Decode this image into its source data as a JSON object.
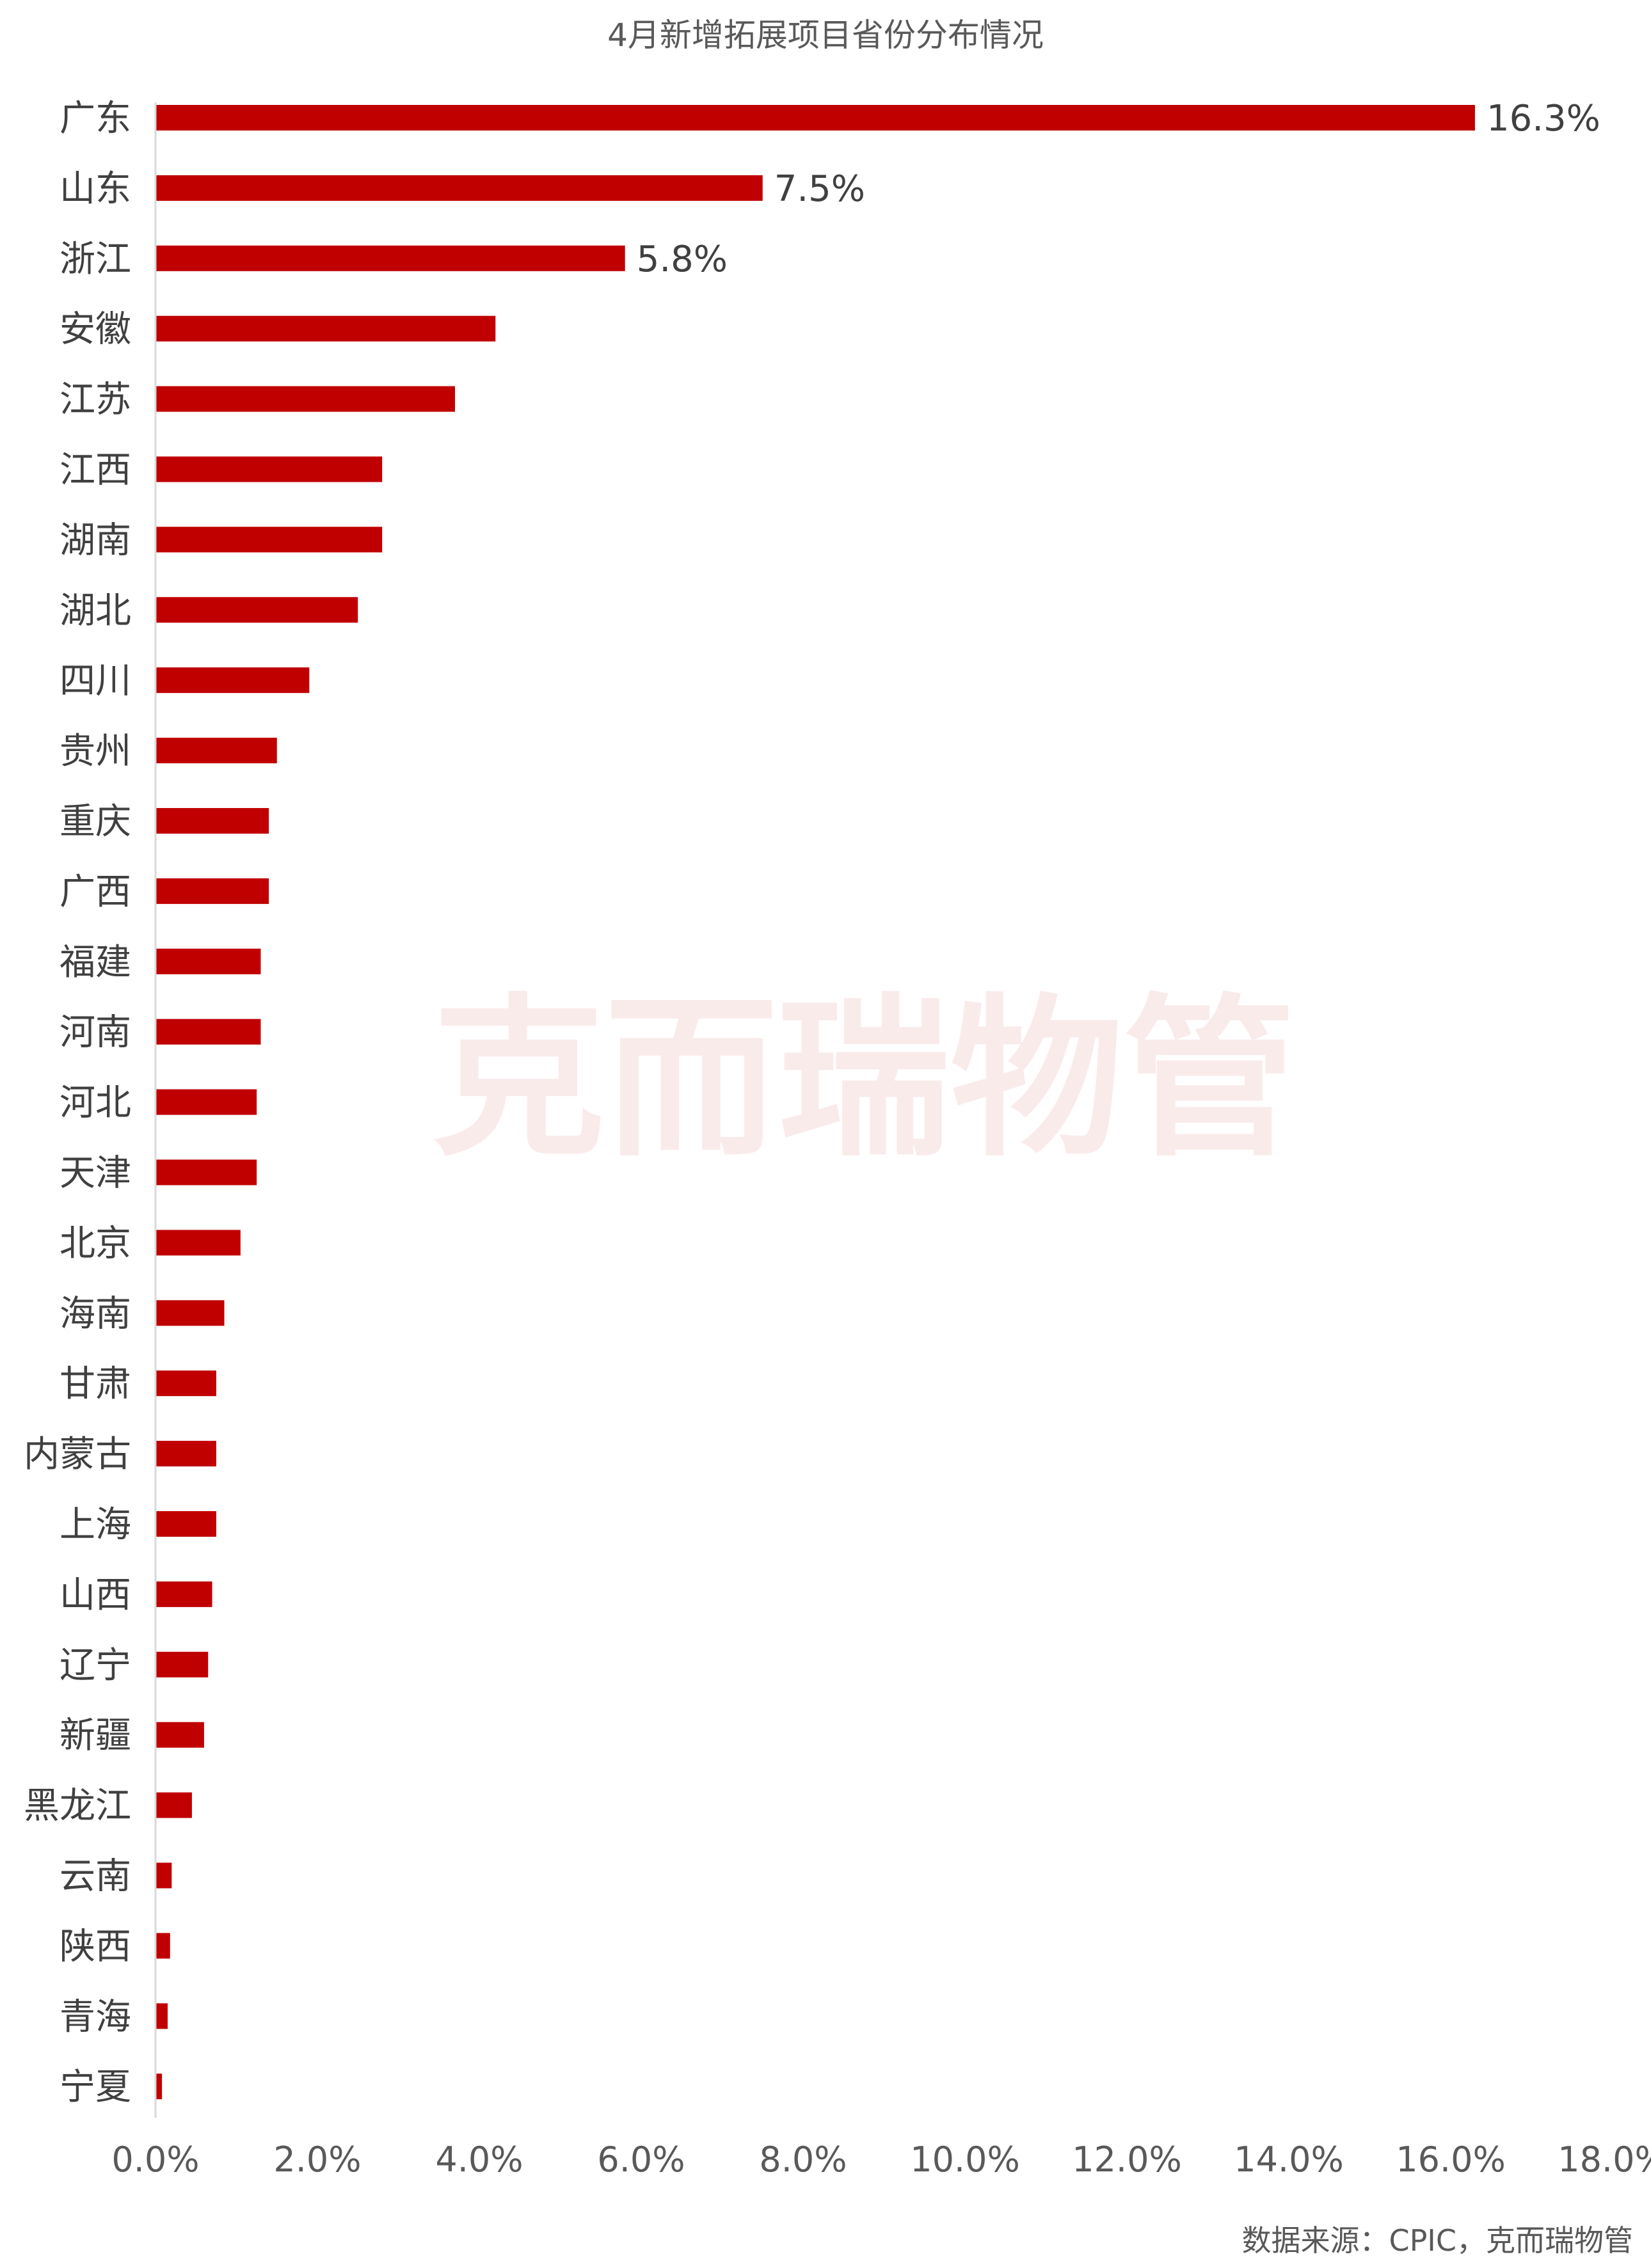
{
  "chart_data": {
    "type": "bar",
    "orientation": "horizontal",
    "title": "4月新增拓展项目省份分布情况",
    "categories": [
      "广东",
      "山东",
      "浙江",
      "安徽",
      "江苏",
      "江西",
      "湖南",
      "湖北",
      "四川",
      "贵州",
      "重庆",
      "广西",
      "福建",
      "河南",
      "河北",
      "天津",
      "北京",
      "海南",
      "甘肃",
      "内蒙古",
      "上海",
      "山西",
      "辽宁",
      "新疆",
      "黑龙江",
      "云南",
      "陕西",
      "青海",
      "宁夏"
    ],
    "values": [
      16.3,
      7.5,
      5.8,
      4.2,
      3.7,
      2.8,
      2.8,
      2.5,
      1.9,
      1.5,
      1.4,
      1.4,
      1.3,
      1.3,
      1.25,
      1.25,
      1.05,
      0.85,
      0.75,
      0.75,
      0.75,
      0.7,
      0.65,
      0.6,
      0.45,
      0.2,
      0.18,
      0.15,
      0.08
    ],
    "data_labels": [
      {
        "index": 0,
        "text": "16.3%"
      },
      {
        "index": 1,
        "text": "7.5%"
      },
      {
        "index": 2,
        "text": "5.8%"
      }
    ],
    "xlim": [
      0,
      18
    ],
    "x_ticks": [
      "0.0%",
      "2.0%",
      "4.0%",
      "6.0%",
      "8.0%",
      "10.0%",
      "12.0%",
      "14.0%",
      "16.0%",
      "18.0%"
    ],
    "bar_color": "#C00000",
    "grid": false,
    "xlabel": "",
    "ylabel": ""
  },
  "watermark": "克而瑞物管",
  "source_note": "数据来源：CPIC，克而瑞物管"
}
